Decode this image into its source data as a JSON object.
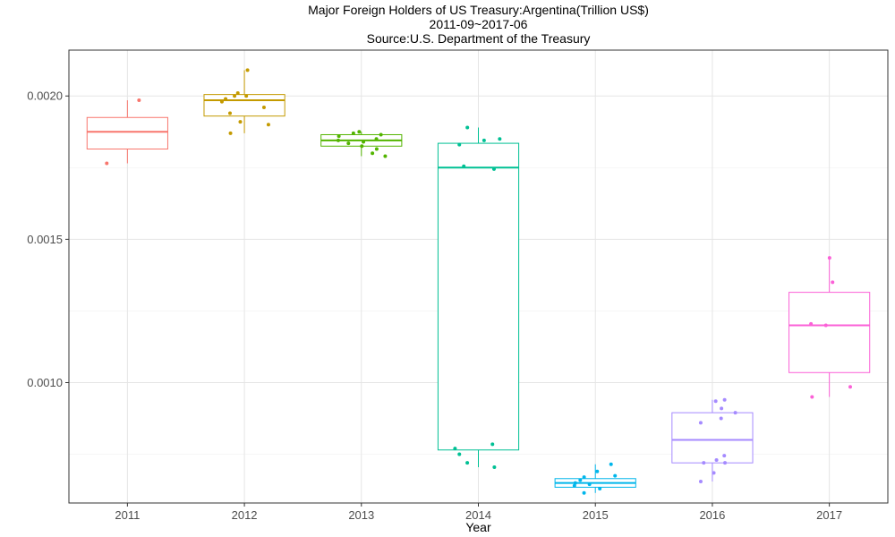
{
  "chart_data": {
    "type": "box",
    "title": "Major Foreign Holders of US Treasury:Argentina(Trillion US$)",
    "subtitle": "2011-09~2017-06",
    "source": "Source:U.S. Department of the Treasury",
    "xlabel": "Year",
    "ylabel": "",
    "ylim": [
      0.00058,
      0.00216
    ],
    "y_ticks": [
      0.001,
      0.0015,
      0.002
    ],
    "y_tick_labels": [
      "0.0010",
      "0.0015",
      "0.0020"
    ],
    "grid": true,
    "legend": "none",
    "categories": [
      "2011",
      "2012",
      "2013",
      "2014",
      "2015",
      "2016",
      "2017"
    ],
    "boxes": [
      {
        "category": "2011",
        "color": "#F8766D",
        "min": 0.001765,
        "q1": 0.001815,
        "median": 0.001875,
        "q3": 0.001925,
        "max": 0.001985,
        "points": [
          0.001985,
          0.001765
        ]
      },
      {
        "category": "2012",
        "color": "#C49A00",
        "min": 0.00187,
        "q1": 0.00193,
        "median": 0.001985,
        "q3": 0.002005,
        "max": 0.00209,
        "points": [
          0.00209,
          0.00201,
          0.002,
          0.002,
          0.00199,
          0.00198,
          0.00196,
          0.00194,
          0.00191,
          0.0019,
          0.00187
        ]
      },
      {
        "category": "2013",
        "color": "#53B400",
        "min": 0.00179,
        "q1": 0.001825,
        "median": 0.001845,
        "q3": 0.001865,
        "max": 0.001875,
        "points": [
          0.001875,
          0.00187,
          0.001865,
          0.00186,
          0.00185,
          0.001845,
          0.00184,
          0.001835,
          0.001825,
          0.001815,
          0.0018,
          0.00179
        ]
      },
      {
        "category": "2014",
        "color": "#00C094",
        "min": 0.000705,
        "q1": 0.000765,
        "median": 0.00175,
        "q3": 0.001835,
        "max": 0.00189,
        "points": [
          0.00189,
          0.00185,
          0.001845,
          0.00183,
          0.001755,
          0.001745,
          0.000785,
          0.00077,
          0.00075,
          0.00072,
          0.000705
        ]
      },
      {
        "category": "2015",
        "color": "#00B6EB",
        "min": 0.000615,
        "q1": 0.000635,
        "median": 0.00065,
        "q3": 0.000665,
        "max": 0.000715,
        "points": [
          0.000715,
          0.00069,
          0.000675,
          0.00067,
          0.00066,
          0.00065,
          0.000645,
          0.00064,
          0.00063,
          0.000615
        ]
      },
      {
        "category": "2016",
        "color": "#A58AFF",
        "min": 0.000655,
        "q1": 0.00072,
        "median": 0.0008,
        "q3": 0.000895,
        "max": 0.00094,
        "points": [
          0.00094,
          0.000935,
          0.00091,
          0.000895,
          0.000875,
          0.00086,
          0.000745,
          0.00073,
          0.00072,
          0.00072,
          0.000685,
          0.000655
        ]
      },
      {
        "category": "2017",
        "color": "#FB61D7",
        "min": 0.00095,
        "q1": 0.001035,
        "median": 0.0012,
        "q3": 0.001315,
        "max": 0.001435,
        "points": [
          0.001435,
          0.00135,
          0.001205,
          0.0012,
          0.000985,
          0.00095
        ]
      }
    ]
  }
}
